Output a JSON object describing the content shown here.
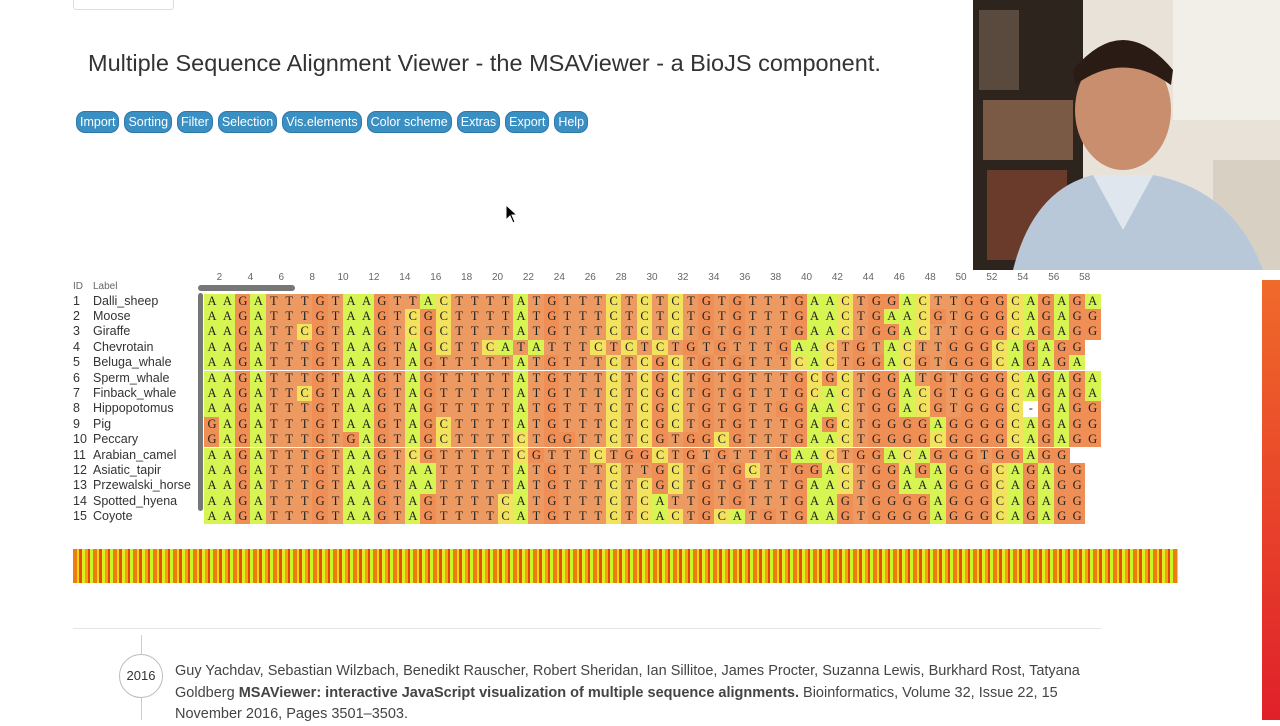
{
  "title": "Multiple Sequence Alignment Viewer - the MSAViewer - a BioJS component.",
  "menu": [
    "Import",
    "Sorting",
    "Filter",
    "Selection",
    "Vis.elements",
    "Color scheme",
    "Extras",
    "Export",
    "Help"
  ],
  "alignment": {
    "header": {
      "id": "ID",
      "label": "Label"
    },
    "ruler": [
      2,
      4,
      6,
      8,
      10,
      12,
      14,
      16,
      18,
      20,
      22,
      24,
      26,
      28,
      30,
      32,
      34,
      36,
      38,
      40,
      42,
      44,
      46,
      48,
      50,
      52,
      54,
      56,
      58
    ],
    "color_scheme": {
      "A": "#d6f553",
      "T": "#ec9a62",
      "G": "#ef8e55",
      "C": "#f3e25e",
      "-": "#ffffff"
    },
    "rows": [
      {
        "id": 1,
        "label": "Dalli_sheep",
        "sequence": "AAGATTTGTAAGTTACTTTTATGTTTCTCTCTGTGTTTGAACTGGACTTGGGCAGAGA"
      },
      {
        "id": 2,
        "label": "Moose",
        "sequence": "AAGATTTGTAAGTCGCTTTTATGTTTCTCTCTGTGTTTGAACTGAACGTGGGCAGAGG"
      },
      {
        "id": 3,
        "label": "Giraffe",
        "sequence": "AAGATTCGTAAGTCGCTTTTATGTTTCTCTCTGTGTTTGAACTGGACTTGGGCAGAGG"
      },
      {
        "id": 4,
        "label": "Chevrotain",
        "sequence": "AAGATTTGTAAGTAGCTTCATATTTCTCTCTGTGTTTGAACTGTACTTGGGCAGAGG"
      },
      {
        "id": 5,
        "label": "Beluga_whale",
        "sequence": "AAGATTTGTAAGTAGTTTTTATGTTTCTCGCTGTGTTTCACTGGACGTGGGCAGAGA"
      },
      {
        "id": 6,
        "label": "Sperm_whale",
        "sequence": "AAGATTTGTAAGTAGTTTTTATGTTTCTCGCTGTGTTTGCGCTGGATGTGGGCAGAGA"
      },
      {
        "id": 7,
        "label": "Finback_whale",
        "sequence": "AAGATTCGTAAGTAGTTTTTATGTTTCTCGCTGTGTTTGCACTGGACGTGGGCAGAGA"
      },
      {
        "id": 8,
        "label": "Hippopotomus",
        "sequence": "AAGATTTGTAAGTAGTTTTTATGTTTCTCGCTGTGTTGGAACTGGACGTGGGC-GAGG"
      },
      {
        "id": 9,
        "label": "Pig",
        "sequence": "GAGATTTGTAAGTAGCTTTTATGTTTCTCGCTGTGTTTGAGCTGGGGAGGGGCAGAGG"
      },
      {
        "id": 10,
        "label": "Peccary",
        "sequence": "GAGATTTGTGAGTAGCTTTTCTGGTTCTCGTGGCGTTTGAACTGGGGCGGGGCAGAGG"
      },
      {
        "id": 11,
        "label": "Arabian_camel",
        "sequence": "AAGATTTGTAAGTCGTTTTTCGTTTCTGGCTGTGTTTGAACTGGACAGGGTGGAGG"
      },
      {
        "id": 12,
        "label": "Asiatic_tapir",
        "sequence": "AAGATTTGTAAGTAATTTTTATGTTTCTTGCTGTGCTTGGACTGGAGAGGGCAGAGG"
      },
      {
        "id": 13,
        "label": "Przewalski_horse",
        "sequence": "AAGATTTGTAAGTAATTTTTATGTTTCTCGCTGTGTTTGAACTGGAAAGGGCAGAGG"
      },
      {
        "id": 14,
        "label": "Spotted_hyena",
        "sequence": "AAGATTTGTAAGTAGTTTTCATGTTTCTCATTGTGTTTGAAGTGGGGAGGGCAGAGG"
      },
      {
        "id": 15,
        "label": "Coyote",
        "sequence": "AAGATTTGTAAGTAGTTTTCATGTTTCTCACTGCATGTGAAGTGGGGAGGGCAGAGG"
      }
    ]
  },
  "citation": {
    "year": "2016",
    "authors": "Guy Yachdav, Sebastian Wilzbach, Benedikt Rauscher, Robert Sheridan, Ian Sillitoe, James Procter, Suzanna Lewis, Burkhard Rost, Tatyana Goldberg",
    "paper_title": "MSAViewer: interactive JavaScript visualization of multiple sequence alignments.",
    "journal": "Bioinformatics, Volume 32, Issue 22, 15 November 2016, Pages 3501–3503."
  }
}
